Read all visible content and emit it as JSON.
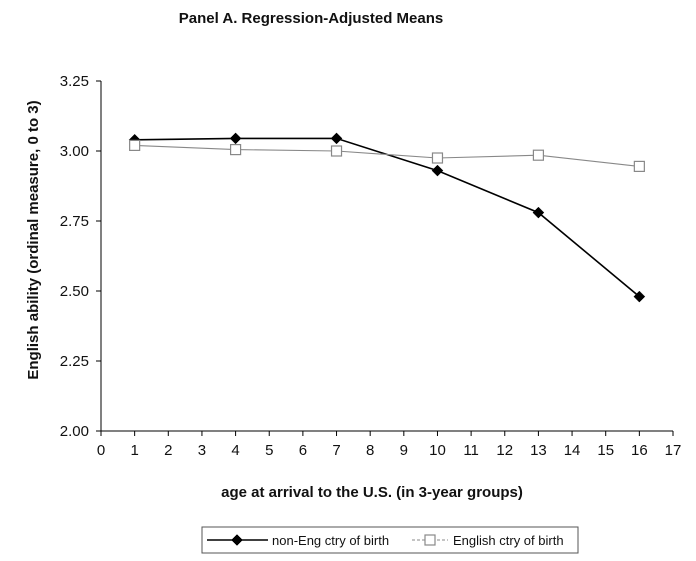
{
  "chart_data": {
    "type": "line",
    "title": "Panel A.  Regression-Adjusted Means",
    "xlabel": "age at arrival to the U.S. (in 3-year groups)",
    "ylabel": "English ability (ordinal measure, 0 to 3)",
    "xlim": [
      0,
      17
    ],
    "ylim": [
      2.0,
      3.25
    ],
    "x_ticks": [
      "0",
      "1",
      "2",
      "3",
      "4",
      "5",
      "6",
      "7",
      "8",
      "9",
      "10",
      "11",
      "12",
      "13",
      "14",
      "15",
      "16",
      "17"
    ],
    "y_ticks": [
      "3.25",
      "3.00",
      "2.75",
      "2.50",
      "2.25",
      "2.00"
    ],
    "x": [
      1,
      4,
      7,
      10,
      13,
      16
    ],
    "series": [
      {
        "name": "non-Eng ctry of birth",
        "values": [
          3.04,
          3.045,
          3.045,
          2.93,
          2.78,
          2.48
        ],
        "color": "#000000",
        "marker": "filled-diamond"
      },
      {
        "name": "English ctry of birth",
        "values": [
          3.02,
          3.005,
          3.0,
          2.975,
          2.985,
          2.945
        ],
        "color": "#888888",
        "marker": "open-square"
      }
    ],
    "grid": false,
    "legend_position": "bottom"
  }
}
